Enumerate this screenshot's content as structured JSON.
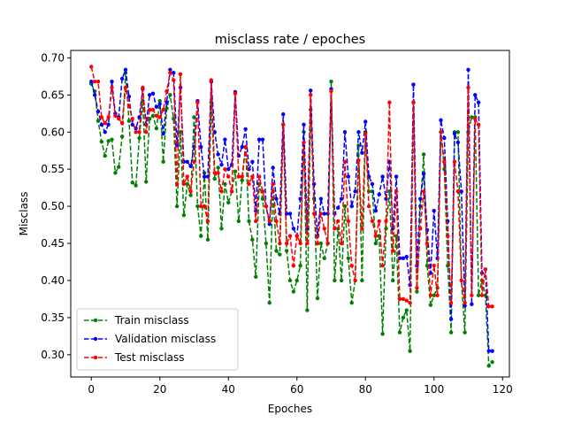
{
  "chart_data": {
    "type": "line",
    "title": "misclass rate / epoches",
    "xlabel": "Epoches",
    "ylabel": "Misclass",
    "xlim": [
      -6,
      122
    ],
    "ylim": [
      0.27,
      0.71
    ],
    "xticks": [
      0,
      20,
      40,
      60,
      80,
      100,
      120
    ],
    "yticks": [
      0.3,
      0.35,
      0.4,
      0.45,
      0.5,
      0.55,
      0.6,
      0.65,
      0.7
    ],
    "ytick_labels": [
      "0.30",
      "0.35",
      "0.40",
      "0.45",
      "0.50",
      "0.55",
      "0.60",
      "0.65",
      "0.70"
    ],
    "grid": false,
    "legend_position": "lower-left",
    "series": [
      {
        "name": "Train misclass",
        "color": "#008000",
        "values": [
          0.665,
          0.655,
          0.615,
          0.587,
          0.568,
          0.588,
          0.59,
          0.545,
          0.553,
          0.594,
          0.68,
          0.615,
          0.532,
          0.528,
          0.592,
          0.642,
          0.533,
          0.618,
          0.622,
          0.605,
          0.642,
          0.56,
          0.632,
          0.65,
          0.618,
          0.5,
          0.6,
          0.488,
          0.53,
          0.515,
          0.62,
          0.5,
          0.46,
          0.545,
          0.455,
          0.64,
          0.537,
          0.552,
          0.47,
          0.53,
          0.505,
          0.52,
          0.547,
          0.48,
          0.535,
          0.58,
          0.48,
          0.455,
          0.405,
          0.53,
          0.51,
          0.45,
          0.37,
          0.52,
          0.44,
          0.435,
          0.61,
          0.44,
          0.4,
          0.385,
          0.4,
          0.42,
          0.6,
          0.36,
          0.63,
          0.51,
          0.376,
          0.45,
          0.43,
          0.45,
          0.668,
          0.4,
          0.47,
          0.4,
          0.5,
          0.43,
          0.37,
          0.4,
          0.582,
          0.4,
          0.6,
          0.52,
          0.52,
          0.45,
          0.46,
          0.328,
          0.47,
          0.52,
          0.4,
          0.46,
          0.33,
          0.35,
          0.36,
          0.305,
          0.64,
          0.385,
          0.5,
          0.57,
          0.42,
          0.367,
          0.38,
          0.39,
          0.6,
          0.55,
          0.42,
          0.33,
          0.6,
          0.6,
          0.4,
          0.33,
          0.6,
          0.62,
          0.62,
          0.38,
          0.4,
          0.38,
          0.285,
          0.29
        ]
      },
      {
        "name": "Validation misclass",
        "color": "#0000ff",
        "values": [
          0.668,
          0.65,
          0.628,
          0.61,
          0.6,
          0.61,
          0.668,
          0.625,
          0.62,
          0.672,
          0.684,
          0.648,
          0.61,
          0.605,
          0.62,
          0.658,
          0.61,
          0.65,
          0.652,
          0.634,
          0.638,
          0.598,
          0.64,
          0.684,
          0.68,
          0.582,
          0.66,
          0.56,
          0.56,
          0.554,
          0.58,
          0.642,
          0.58,
          0.54,
          0.54,
          0.668,
          0.6,
          0.57,
          0.556,
          0.59,
          0.55,
          0.556,
          0.654,
          0.568,
          0.58,
          0.604,
          0.55,
          0.56,
          0.494,
          0.59,
          0.59,
          0.5,
          0.476,
          0.552,
          0.51,
          0.49,
          0.624,
          0.49,
          0.49,
          0.47,
          0.46,
          0.51,
          0.61,
          0.47,
          0.656,
          0.53,
          0.46,
          0.51,
          0.49,
          0.49,
          0.658,
          0.49,
          0.498,
          0.51,
          0.6,
          0.54,
          0.5,
          0.52,
          0.6,
          0.572,
          0.614,
          0.54,
          0.53,
          0.494,
          0.516,
          0.54,
          0.51,
          0.56,
          0.47,
          0.54,
          0.43,
          0.43,
          0.432,
          0.394,
          0.664,
          0.42,
          0.51,
          0.544,
          0.468,
          0.41,
          0.494,
          0.43,
          0.616,
          0.592,
          0.48,
          0.348,
          0.598,
          0.586,
          0.52,
          0.366,
          0.684,
          0.368,
          0.65,
          0.64,
          0.41,
          0.415,
          0.305,
          0.305
        ]
      },
      {
        "name": "Test misclass",
        "color": "#ff0000",
        "values": [
          0.688,
          0.668,
          0.668,
          0.62,
          0.612,
          0.62,
          0.66,
          0.622,
          0.618,
          0.612,
          0.66,
          0.635,
          0.618,
          0.6,
          0.6,
          0.66,
          0.6,
          0.63,
          0.63,
          0.622,
          0.62,
          0.63,
          0.655,
          0.68,
          0.67,
          0.53,
          0.678,
          0.53,
          0.54,
          0.52,
          0.56,
          0.64,
          0.5,
          0.5,
          0.48,
          0.67,
          0.545,
          0.545,
          0.52,
          0.55,
          0.54,
          0.52,
          0.652,
          0.54,
          0.54,
          0.58,
          0.53,
          0.54,
          0.48,
          0.54,
          0.52,
          0.5,
          0.48,
          0.53,
          0.48,
          0.45,
          0.61,
          0.45,
          0.46,
          0.42,
          0.46,
          0.45,
          0.586,
          0.45,
          0.65,
          0.49,
          0.45,
          0.49,
          0.47,
          0.45,
          0.655,
          0.47,
          0.48,
          0.45,
          0.56,
          0.48,
          0.42,
          0.4,
          0.562,
          0.47,
          0.598,
          0.5,
          0.48,
          0.46,
          0.48,
          0.42,
          0.48,
          0.64,
          0.44,
          0.52,
          0.375,
          0.375,
          0.373,
          0.37,
          0.64,
          0.39,
          0.47,
          0.52,
          0.45,
          0.38,
          0.42,
          0.38,
          0.6,
          0.56,
          0.46,
          0.37,
          0.56,
          0.52,
          0.4,
          0.37,
          0.66,
          0.38,
          0.618,
          0.61,
          0.38,
          0.415,
          0.365,
          0.365
        ]
      }
    ]
  }
}
